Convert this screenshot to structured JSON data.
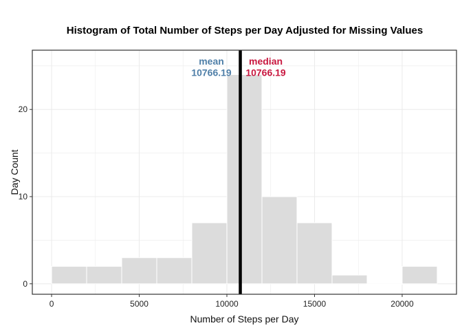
{
  "chart_data": {
    "type": "bar",
    "title": "Histogram of Total Number of Steps per Day Adjusted for Missing Values",
    "xlabel": "Number of Steps per Day",
    "ylabel": "Day Count",
    "xlim": [
      -1100,
      23100
    ],
    "ylim": [
      -1.2,
      26.8
    ],
    "xticks": [
      0,
      5000,
      10000,
      15000,
      20000
    ],
    "xtick_labels": [
      "0",
      "5000",
      "10000",
      "15000",
      "20000"
    ],
    "yticks": [
      0,
      10,
      20
    ],
    "ytick_labels": [
      "0",
      "10",
      "20"
    ],
    "bin_width": 2000,
    "bins": [
      {
        "start": 0,
        "end": 2000,
        "count": 2
      },
      {
        "start": 2000,
        "end": 4000,
        "count": 2
      },
      {
        "start": 4000,
        "end": 6000,
        "count": 3
      },
      {
        "start": 6000,
        "end": 8000,
        "count": 3
      },
      {
        "start": 8000,
        "end": 10000,
        "count": 7
      },
      {
        "start": 10000,
        "end": 12000,
        "count": 24
      },
      {
        "start": 12000,
        "end": 14000,
        "count": 10
      },
      {
        "start": 14000,
        "end": 16000,
        "count": 7
      },
      {
        "start": 16000,
        "end": 18000,
        "count": 1
      },
      {
        "start": 18000,
        "end": 20000,
        "count": 0
      },
      {
        "start": 20000,
        "end": 22000,
        "count": 2
      }
    ],
    "vline": {
      "x": 10766.19
    },
    "annotations": {
      "mean": {
        "label": "mean",
        "value": "10766.19",
        "x": 10766.19,
        "color": "#4f7fa8"
      },
      "median": {
        "label": "median",
        "value": "10766.19",
        "x": 10766.19,
        "color": "#c8173f"
      }
    },
    "grid": true,
    "colors": {
      "bar_fill": "#dcdcdc",
      "bar_stroke": "#ffffff",
      "grid": "#ebebeb",
      "panel_border": "#333333",
      "vline": "#000000"
    }
  }
}
